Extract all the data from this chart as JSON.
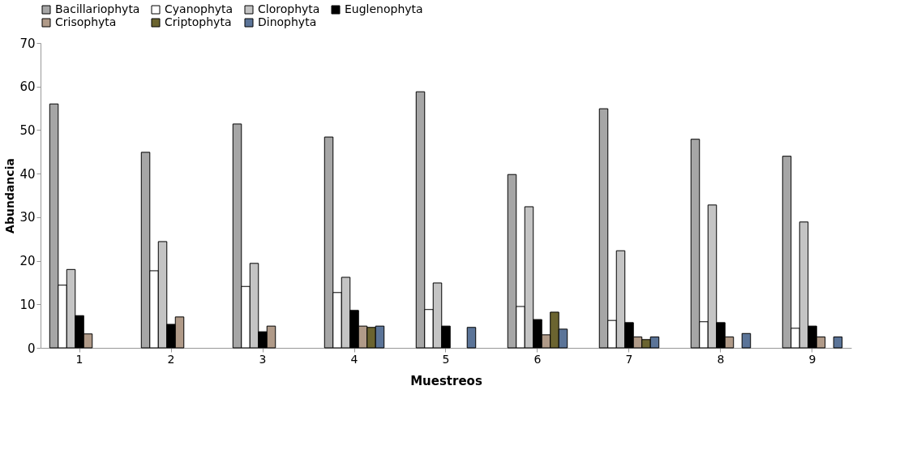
{
  "chart_data": {
    "type": "bar",
    "xlabel": "Muestreos",
    "ylabel": "Abundancia",
    "categories": [
      "1",
      "2",
      "3",
      "4",
      "5",
      "6",
      "7",
      "8",
      "9"
    ],
    "series": [
      {
        "name": "Bacillariophyta",
        "color": "#a6a6a6",
        "values": [
          56,
          44.9,
          51.4,
          48.4,
          58.8,
          39.8,
          54.9,
          47.9,
          44
        ]
      },
      {
        "name": "Cyanophyta",
        "color": "#ffffff",
        "values": [
          14.4,
          17.7,
          14.1,
          12.7,
          8.8,
          9.5,
          6.3,
          6.0,
          4.5
        ]
      },
      {
        "name": "Clorophyta",
        "color": "#c4c4c4",
        "values": [
          18,
          24.4,
          19.4,
          16.2,
          14.9,
          32.4,
          22.3,
          32.8,
          28.9
        ]
      },
      {
        "name": "Euglenophyta",
        "color": "#000000",
        "values": [
          7.4,
          5.4,
          3.7,
          8.6,
          5.0,
          6.5,
          5.8,
          5.8,
          5.0
        ]
      },
      {
        "name": "Crisophyta",
        "color": "#b09a88",
        "values": [
          3.2,
          7.1,
          5.0,
          5.0,
          null,
          3.0,
          2.5,
          2.5,
          2.5
        ]
      },
      {
        "name": "Criptophyta",
        "color": "#6b6430",
        "values": [
          null,
          null,
          null,
          4.7,
          null,
          8.2,
          1.9,
          null,
          null
        ]
      },
      {
        "name": "Dinophyta",
        "color": "#5b7498",
        "values": [
          null,
          null,
          null,
          5.0,
          4.7,
          4.3,
          2.5,
          3.3,
          2.5
        ]
      }
    ],
    "ylim": [
      0,
      70
    ],
    "yticks": [
      0,
      10,
      20,
      30,
      40,
      50,
      60,
      70
    ],
    "grid": false,
    "legend": "top"
  }
}
